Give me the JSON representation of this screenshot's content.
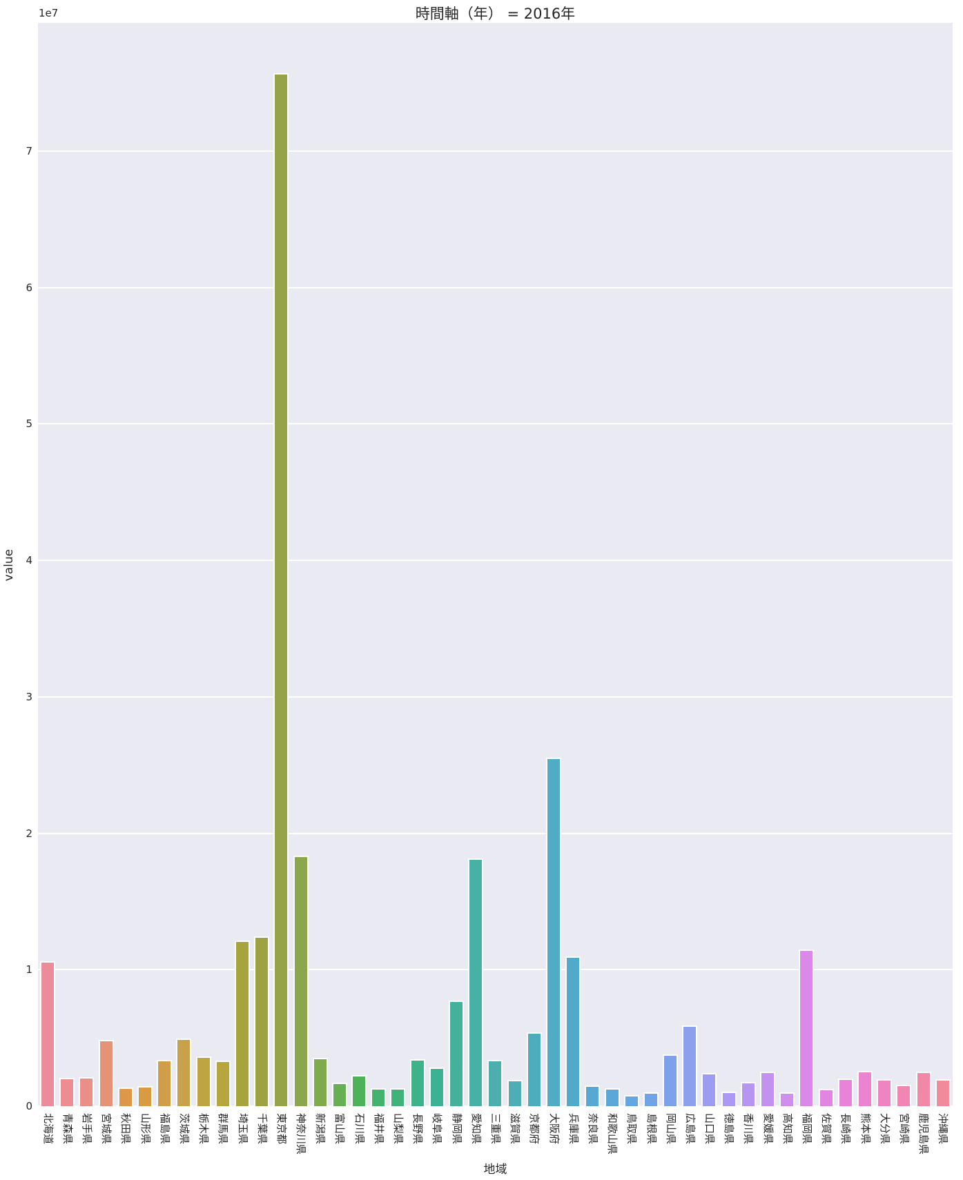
{
  "figure": {
    "background": "#ffffff",
    "plot_background": "#eaeaf2",
    "grid_color": "#ffffff",
    "text_color": "#262626"
  },
  "chart_data": {
    "type": "bar",
    "title": "時間軸（年） = 2016年",
    "xlabel": "地域",
    "ylabel": "value",
    "offset_text": "1e7",
    "ylim": [
      0,
      79400000
    ],
    "ytick_values": [
      0,
      1,
      2,
      3,
      4,
      5,
      6,
      7
    ],
    "ytick_unit": 10000000,
    "grid": "horizontal",
    "legend_position": "none",
    "categories": [
      "北海道",
      "青森県",
      "岩手県",
      "宮城県",
      "秋田県",
      "山形県",
      "福島県",
      "茨城県",
      "栃木県",
      "群馬県",
      "埼玉県",
      "千葉県",
      "東京都",
      "神奈川県",
      "新潟県",
      "富山県",
      "石川県",
      "福井県",
      "山梨県",
      "長野県",
      "岐阜県",
      "静岡県",
      "愛知県",
      "三重県",
      "滋賀県",
      "京都府",
      "大阪府",
      "兵庫県",
      "奈良県",
      "和歌山県",
      "鳥取県",
      "島根県",
      "岡山県",
      "広島県",
      "山口県",
      "徳島県",
      "香川県",
      "愛媛県",
      "高知県",
      "福岡県",
      "佐賀県",
      "長崎県",
      "熊本県",
      "大分県",
      "宮崎県",
      "鹿児島県",
      "沖縄県"
    ],
    "values": [
      10620000,
      2070000,
      2120000,
      4850000,
      1360000,
      1460000,
      3380000,
      4950000,
      3640000,
      3330000,
      12140000,
      12440000,
      75700000,
      18360000,
      3540000,
      1720000,
      2280000,
      1320000,
      1320000,
      3440000,
      2810000,
      7740000,
      18160000,
      3390000,
      1920000,
      5410000,
      25540000,
      10980000,
      1530000,
      1310000,
      810000,
      1010000,
      3790000,
      5920000,
      2430000,
      1060000,
      1770000,
      2530000,
      1010000,
      11480000,
      1260000,
      2020000,
      2580000,
      1970000,
      1570000,
      2530000,
      1970000
    ],
    "palette": [
      "#ec8b99",
      "#eb8d92",
      "#e98f88",
      "#e69277",
      "#de9748",
      "#d99b41",
      "#d09e48",
      "#c8a24a",
      "#bfa541",
      "#b5a73e",
      "#a8a43d",
      "#9da342",
      "#96a349",
      "#8aa84b",
      "#7fab4d",
      "#66b053",
      "#4eb25b",
      "#44b36e",
      "#40b37c",
      "#3eb389",
      "#3db293",
      "#44b19d",
      "#49b0a5",
      "#4bafae",
      "#4daeb5",
      "#4eadbc",
      "#50abc4",
      "#52aacb",
      "#56a9d2",
      "#5ca7d9",
      "#64a6e0",
      "#70a4e6",
      "#7da2ea",
      "#8ca0ee",
      "#9c9df1",
      "#ab99f3",
      "#b796f2",
      "#c392f0",
      "#d08eed",
      "#db89e8",
      "#e285e2",
      "#e883d9",
      "#ec83ce",
      "#ee84c1",
      "#f086b3",
      "#f088a6",
      "#ef8b9a"
    ]
  }
}
